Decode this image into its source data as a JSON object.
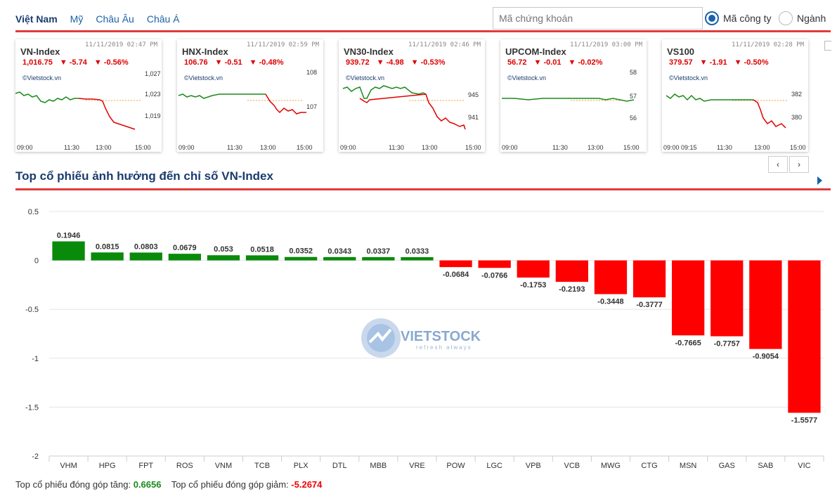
{
  "nav": {
    "tabs": [
      "Việt Nam",
      "Mỹ",
      "Châu Âu",
      "Châu Á"
    ],
    "search_placeholder": "Mã chứng khoán",
    "radio_company": "Mã công ty",
    "radio_sector": "Ngành"
  },
  "cards": [
    {
      "name": "VN-Index",
      "time": "11/11/2019 02:47 PM",
      "value": "1,016.75",
      "change": "-5.74",
      "pct": "-0.56%",
      "brand": "©Vietstock.vn",
      "yticks": [
        "1,027",
        "1,023",
        "1,019"
      ],
      "xticks": [
        "09:00",
        "11:30",
        "13:00",
        "15:00"
      ]
    },
    {
      "name": "HNX-Index",
      "time": "11/11/2019 02:59 PM",
      "value": "106.76",
      "change": "-0.51",
      "pct": "-0.48%",
      "brand": "©Vietstock.vn",
      "yticks": [
        "108",
        "107"
      ],
      "xticks": [
        "09:00",
        "11:30",
        "13:00",
        "15:00"
      ]
    },
    {
      "name": "VN30-Index",
      "time": "11/11/2019 02:46 PM",
      "value": "939.72",
      "change": "-4.98",
      "pct": "-0.53%",
      "brand": "©Vietstock.vn",
      "yticks": [
        "945",
        "941"
      ],
      "xticks": [
        "09:00",
        "11:30",
        "13:00",
        "15:00"
      ]
    },
    {
      "name": "UPCOM-Index",
      "time": "11/11/2019 03:00 PM",
      "value": "56.72",
      "change": "-0.01",
      "pct": "-0.02%",
      "brand": "©Vietstock.vn",
      "yticks": [
        "58",
        "57",
        "56"
      ],
      "xticks": [
        "09:00",
        "11:30",
        "13:00",
        "15:00"
      ]
    },
    {
      "name": "VS100",
      "time": "11/11/2019 02:28 PM",
      "value": "379.57",
      "change": "-1.91",
      "pct": "-0.50%",
      "brand": "©Vietstock.vn",
      "yticks": [
        "382",
        "380"
      ],
      "xticks": [
        "09:00 09:15",
        "11:30",
        "13:00",
        "15:00"
      ]
    }
  ],
  "pager": {
    "prev": "‹",
    "next": "›"
  },
  "section_title": "Top cổ phiếu ảnh hưởng đến chỉ số VN-Index",
  "watermark": {
    "brand": "VIETSTOCK",
    "tagline": "refresh always"
  },
  "chart_data": {
    "type": "bar",
    "title": "",
    "xlabel": "",
    "ylabel": "",
    "ylim": [
      -2,
      0.5
    ],
    "yticks": [
      0.5,
      0,
      -0.5,
      -1,
      -1.5,
      -2
    ],
    "grid": true,
    "categories": [
      "VHM",
      "HPG",
      "FPT",
      "ROS",
      "VNM",
      "TCB",
      "PLX",
      "DTL",
      "MBB",
      "VRE",
      "POW",
      "LGC",
      "VPB",
      "VCB",
      "MWG",
      "CTG",
      "MSN",
      "GAS",
      "SAB",
      "VIC"
    ],
    "values": [
      0.1946,
      0.0815,
      0.0803,
      0.0679,
      0.053,
      0.0518,
      0.0352,
      0.0343,
      0.0337,
      0.0333,
      -0.0684,
      -0.0766,
      -0.1753,
      -0.2193,
      -0.3448,
      -0.3777,
      -0.7665,
      -0.7757,
      -0.9054,
      -1.5577
    ],
    "colors": {
      "positive": "#0a8a0a",
      "negative": "#ff0000"
    }
  },
  "footer": {
    "up_label": "Top cổ phiếu đóng góp tăng:",
    "up_value": "0.6656",
    "down_label": "Top cổ phiếu đóng góp giảm:",
    "down_value": "-5.2674"
  }
}
